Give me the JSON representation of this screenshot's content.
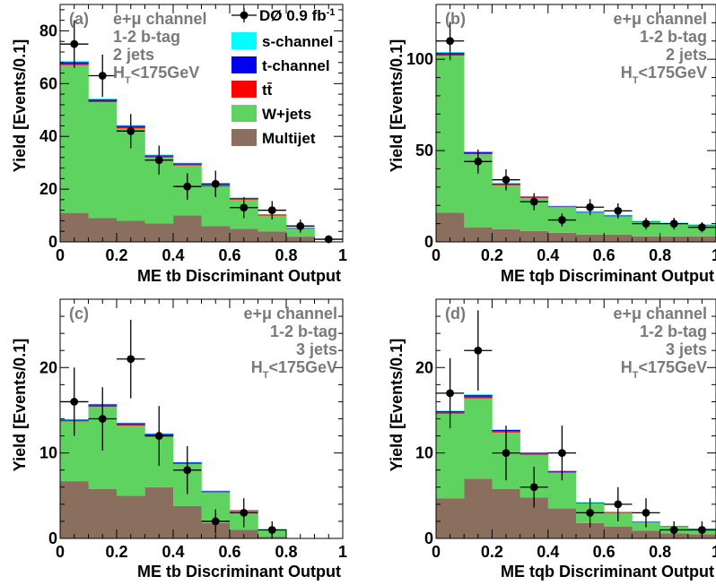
{
  "colors": {
    "multijet": "#8b6f5e",
    "wjets": "#5fd35f",
    "ttbar": "#ff0000",
    "t_channel": "#0000ee",
    "s_channel": "#00ffff",
    "data": "#000000",
    "label_gray": "#7a7a7a"
  },
  "legend": {
    "data": "DØ 0.9 fb",
    "data_sup": "-1",
    "s_channel": "s-channel",
    "t_channel": "t-channel",
    "ttbar": "tt̄",
    "wjets": "W+jets",
    "multijet": "Multijet"
  },
  "chart_data": [
    {
      "type": "bar",
      "panel": "(a)",
      "info": [
        "e+μ channel",
        "1-2 b-tag",
        "2 jets",
        "H_T<175GeV"
      ],
      "xlabel": "ME tb Discriminant Output",
      "ylabel": "Yield [Events/0.1]",
      "xlim": [
        0,
        1
      ],
      "ylim": [
        0,
        90
      ],
      "xticks": [
        "0",
        "0.2",
        "0.4",
        "0.6",
        "0.8",
        "1"
      ],
      "yticks": [
        0,
        20,
        40,
        60,
        80
      ],
      "bin_edges": [
        0,
        0.1,
        0.2,
        0.3,
        0.4,
        0.5,
        0.6,
        0.7,
        0.8,
        0.9,
        1.0
      ],
      "series": [
        {
          "name": "Multijet",
          "values": [
            11,
            9,
            8,
            7,
            10,
            6,
            5,
            4,
            2,
            0
          ]
        },
        {
          "name": "W+jets",
          "values": [
            56,
            44,
            35,
            25,
            19,
            15,
            11,
            6,
            3,
            0
          ]
        },
        {
          "name": "tt̄",
          "values": [
            0.6,
            0.5,
            0.5,
            0.4,
            0.4,
            0.3,
            0.3,
            0.2,
            0.2,
            0
          ]
        },
        {
          "name": "t-channel",
          "values": [
            0.6,
            0.5,
            0.5,
            0.4,
            0.4,
            0.3,
            0.3,
            0.2,
            0.2,
            0
          ]
        },
        {
          "name": "s-channel",
          "values": [
            0.3,
            0.3,
            0.3,
            0.3,
            0.2,
            0.2,
            0.2,
            0.1,
            0.1,
            0
          ]
        }
      ],
      "data_points": {
        "name": "DØ 0.9 fb-1",
        "x": [
          0.05,
          0.15,
          0.25,
          0.35,
          0.45,
          0.55,
          0.65,
          0.75,
          0.85,
          0.95
        ],
        "y": [
          75,
          63,
          42,
          31,
          21,
          22,
          13,
          12,
          6,
          1
        ],
        "yerr": [
          9,
          8,
          6.5,
          5.5,
          5,
          5,
          4,
          3.5,
          2.5,
          1
        ]
      }
    },
    {
      "type": "bar",
      "panel": "(b)",
      "info": [
        "e+μ channel",
        "1-2 b-tag",
        "2 jets",
        "H_T<175GeV"
      ],
      "xlabel": "ME tqb Discriminant Output",
      "ylabel": "Yield [Events/0.1]",
      "xlim": [
        0,
        1
      ],
      "ylim": [
        0,
        130
      ],
      "xticks": [
        "0",
        "0.2",
        "0.4",
        "0.6",
        "0.8",
        "1"
      ],
      "yticks": [
        0,
        50,
        100
      ],
      "bin_edges": [
        0,
        0.1,
        0.2,
        0.3,
        0.4,
        0.5,
        0.6,
        0.7,
        0.8,
        0.9,
        1.0
      ],
      "series": [
        {
          "name": "Multijet",
          "values": [
            16,
            8,
            7,
            6,
            5,
            4,
            4,
            3,
            3,
            3
          ]
        },
        {
          "name": "W+jets",
          "values": [
            86,
            40,
            24,
            18,
            14,
            12,
            10,
            8,
            7,
            6
          ]
        },
        {
          "name": "tt̄",
          "values": [
            0.8,
            0.6,
            0.5,
            0.4,
            0.3,
            0.3,
            0.3,
            0.2,
            0.2,
            0.2
          ]
        },
        {
          "name": "t-channel",
          "values": [
            0.8,
            0.6,
            0.5,
            0.4,
            0.3,
            0.3,
            0.3,
            0.2,
            0.2,
            0.2
          ]
        },
        {
          "name": "s-channel",
          "values": [
            0.4,
            0.3,
            0.3,
            0.2,
            0.2,
            0.2,
            0.2,
            0.1,
            0.1,
            0.1
          ]
        }
      ],
      "data_points": {
        "name": "DØ 0.9 fb-1",
        "x": [
          0.05,
          0.15,
          0.25,
          0.35,
          0.45,
          0.55,
          0.65,
          0.75,
          0.85,
          0.95
        ],
        "y": [
          110,
          44,
          34,
          22,
          12,
          19,
          17,
          10,
          10,
          8
        ],
        "yerr": [
          10.5,
          6.6,
          5.8,
          4.7,
          3.5,
          4.4,
          4.1,
          3.2,
          3.2,
          2.8
        ]
      }
    },
    {
      "type": "bar",
      "panel": "(c)",
      "info": [
        "e+μ channel",
        "1-2 b-tag",
        "3 jets",
        "H_T<175GeV"
      ],
      "xlabel": "ME tb Discriminant Output",
      "ylabel": "Yield [Events/0.1]",
      "xlim": [
        0,
        1
      ],
      "ylim": [
        0,
        28
      ],
      "xticks": [
        "0",
        "0.2",
        "0.4",
        "0.6",
        "0.8",
        "1"
      ],
      "yticks": [
        0,
        10,
        20
      ],
      "bin_edges": [
        0,
        0.1,
        0.2,
        0.3,
        0.4,
        0.5,
        0.6,
        0.7,
        0.8,
        0.9,
        1.0
      ],
      "series": [
        {
          "name": "Multijet",
          "values": [
            6.7,
            5.8,
            5.0,
            6.0,
            3.8,
            1.8,
            1.0,
            0.2,
            0,
            0
          ]
        },
        {
          "name": "W+jets",
          "values": [
            7.0,
            9.6,
            8.2,
            6.0,
            4.9,
            3.6,
            2.2,
            0.8,
            0,
            0
          ]
        },
        {
          "name": "tt̄",
          "values": [
            0.1,
            0.15,
            0.15,
            0.12,
            0.1,
            0.08,
            0.05,
            0.03,
            0,
            0
          ]
        },
        {
          "name": "t-channel",
          "values": [
            0.1,
            0.15,
            0.15,
            0.12,
            0.1,
            0.08,
            0.05,
            0.03,
            0,
            0
          ]
        },
        {
          "name": "s-channel",
          "values": [
            0.05,
            0.05,
            0.05,
            0.05,
            0.05,
            0.04,
            0.03,
            0.02,
            0,
            0
          ]
        }
      ],
      "data_points": {
        "name": "DØ 0.9 fb-1",
        "x": [
          0.05,
          0.15,
          0.25,
          0.35,
          0.45,
          0.55,
          0.65,
          0.75
        ],
        "y": [
          16,
          14,
          21,
          12,
          8,
          2,
          3,
          1
        ],
        "yerr": [
          4,
          3.7,
          4.6,
          3.5,
          2.8,
          1.4,
          1.7,
          1
        ]
      }
    },
    {
      "type": "bar",
      "panel": "(d)",
      "info": [
        "e+μ channel",
        "1-2 b-tag",
        "3 jets",
        "H_T<175GeV"
      ],
      "xlabel": "ME tqb Discriminant Output",
      "ylabel": "Yield [Events/0.1]",
      "xlim": [
        0,
        1
      ],
      "ylim": [
        0,
        28
      ],
      "xticks": [
        "0",
        "0.2",
        "0.4",
        "0.6",
        "0.8",
        "1"
      ],
      "yticks": [
        0,
        10,
        20
      ],
      "bin_edges": [
        0,
        0.1,
        0.2,
        0.3,
        0.4,
        0.5,
        0.6,
        0.7,
        0.8,
        0.9,
        1.0
      ],
      "series": [
        {
          "name": "Multijet",
          "values": [
            4.7,
            7.0,
            5.8,
            4.8,
            3.5,
            1.8,
            1.4,
            0.9,
            0.6,
            0.5
          ]
        },
        {
          "name": "W+jets",
          "values": [
            9.9,
            9.4,
            6.6,
            5.0,
            4.2,
            2.3,
            1.6,
            1.0,
            0.8,
            0.6
          ]
        },
        {
          "name": "tt̄",
          "values": [
            0.15,
            0.2,
            0.15,
            0.12,
            0.1,
            0.06,
            0.05,
            0.04,
            0.03,
            0.03
          ]
        },
        {
          "name": "t-channel",
          "values": [
            0.15,
            0.2,
            0.15,
            0.12,
            0.1,
            0.06,
            0.05,
            0.04,
            0.03,
            0.03
          ]
        },
        {
          "name": "s-channel",
          "values": [
            0.05,
            0.06,
            0.05,
            0.04,
            0.04,
            0.03,
            0.02,
            0.02,
            0.01,
            0.01
          ]
        }
      ],
      "data_points": {
        "name": "DØ 0.9 fb-1",
        "x": [
          0.05,
          0.15,
          0.25,
          0.35,
          0.45,
          0.55,
          0.65,
          0.75,
          0.85,
          0.95
        ],
        "y": [
          17,
          22,
          10,
          6,
          10,
          3,
          4,
          3,
          1,
          1
        ],
        "yerr": [
          4.1,
          4.7,
          3.2,
          2.4,
          3.2,
          1.7,
          2,
          1.7,
          1,
          1
        ]
      }
    }
  ]
}
